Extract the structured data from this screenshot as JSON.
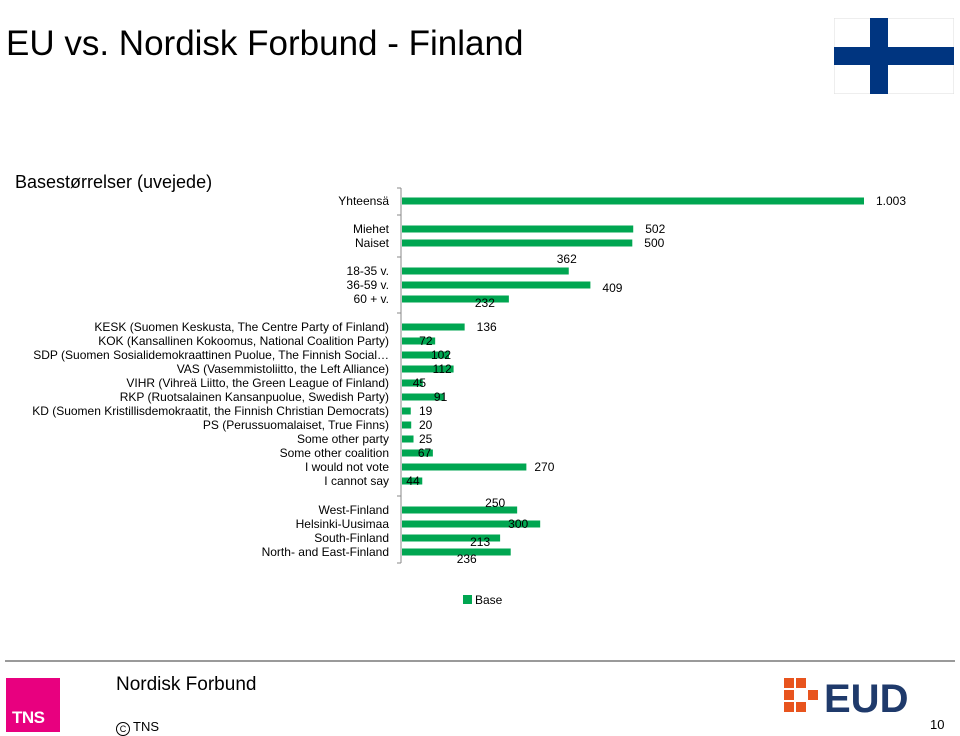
{
  "title": "EU vs. Nordisk Forbund - Finland",
  "subtitle": "Basestørrelser (uvejede)",
  "colors": {
    "bar": "#00a651",
    "axis": "#888888",
    "flag_blue": "#003580",
    "tns_pink": "#e8007f",
    "eud_orange": "#e8541e",
    "eud_navy": "#1f3a6b"
  },
  "icons": {
    "flag": "finland-flag",
    "tns": "tns-logo",
    "eud": "eud-logo"
  },
  "chart_data": {
    "type": "bar",
    "orientation": "horizontal",
    "xlim": [
      0,
      1003
    ],
    "legend": "bottom-center",
    "series": [
      {
        "name": "Base"
      }
    ],
    "categories": [
      {
        "label": "Yhteensä",
        "value": 1003,
        "value_label": "1.003"
      },
      {
        "label": "Miehet",
        "value": 502,
        "value_label": "502"
      },
      {
        "label": "Naiset",
        "value": 500,
        "value_label": "500"
      },
      {
        "label": "18-35 v.",
        "value": 362,
        "value_label": "362"
      },
      {
        "label": "36-59 v.",
        "value": 409,
        "value_label": "409"
      },
      {
        "label": "60 + v.",
        "value": 232,
        "value_label": "232"
      },
      {
        "label": "KESK (Suomen Keskusta, The Centre Party of Finland)",
        "value": 136,
        "value_label": "136"
      },
      {
        "label": "KOK (Kansallinen Kokoomus, National Coalition Party)",
        "value": 72,
        "value_label": "72"
      },
      {
        "label": "SDP (Suomen Sosialidemokraattinen Puolue, The Finnish Social…",
        "value": 102,
        "value_label": "102"
      },
      {
        "label": "VAS (Vasemmistoliitto, the Left Alliance)",
        "value": 112,
        "value_label": "112"
      },
      {
        "label": "VIHR (Vihreä Liitto, the Green League of Finland)",
        "value": 45,
        "value_label": "45"
      },
      {
        "label": "RKP (Ruotsalainen Kansanpuolue, Swedish Party)",
        "value": 91,
        "value_label": "91"
      },
      {
        "label": "KD (Suomen Kristillisdemokraatit, the Finnish Christian Democrats)",
        "value": 19,
        "value_label": "19"
      },
      {
        "label": "PS (Perussuomalaiset, True Finns)",
        "value": 20,
        "value_label": "20"
      },
      {
        "label": "Some other party",
        "value": 25,
        "value_label": "25"
      },
      {
        "label": "Some other coalition",
        "value": 67,
        "value_label": "67"
      },
      {
        "label": "I would not vote",
        "value": 270,
        "value_label": "270"
      },
      {
        "label": "I cannot say",
        "value": 44,
        "value_label": "44"
      },
      {
        "label": "West-Finland",
        "value": 250,
        "value_label": "250"
      },
      {
        "label": "Helsinki-Uusimaa",
        "value": 300,
        "value_label": "300"
      },
      {
        "label": "South-Finland",
        "value": 213,
        "value_label": "213"
      },
      {
        "label": "North- and East-Finland",
        "value": 236,
        "value_label": "236"
      }
    ]
  },
  "footer": {
    "title": "Nordisk Forbund",
    "copyright": "TNS",
    "tns_text": "TNS",
    "page_number": "10",
    "eud_text": "EUD"
  }
}
